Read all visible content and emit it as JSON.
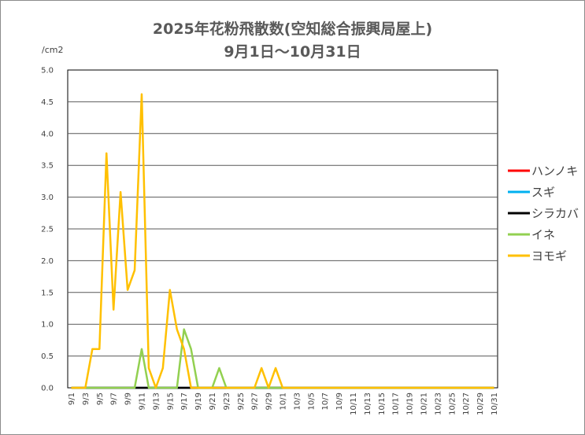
{
  "title_line1": "2025年花粉飛散数(空知総合振興局屋上)",
  "title_line2": "9月1日～10月31日",
  "chart_data": {
    "type": "line",
    "title": "2025年花粉飛散数(空知総合振興局屋上) 9月1日～10月31日",
    "ylabel": "/cm2",
    "xlabel": "",
    "ylim": [
      0,
      5.0
    ],
    "yticks": [
      "0.0",
      "0.5",
      "1.0",
      "1.5",
      "2.0",
      "2.5",
      "3.0",
      "3.5",
      "4.0",
      "4.5",
      "5.0"
    ],
    "categories": [
      "9/1",
      "9/2",
      "9/3",
      "9/4",
      "9/5",
      "9/6",
      "9/7",
      "9/8",
      "9/9",
      "9/10",
      "9/11",
      "9/12",
      "9/13",
      "9/14",
      "9/15",
      "9/16",
      "9/17",
      "9/18",
      "9/19",
      "9/20",
      "9/21",
      "9/22",
      "9/23",
      "9/24",
      "9/25",
      "9/26",
      "9/27",
      "9/28",
      "9/29",
      "9/30",
      "10/1",
      "10/2",
      "10/3",
      "10/4",
      "10/5",
      "10/6",
      "10/7",
      "10/8",
      "10/9",
      "10/10",
      "10/11",
      "10/12",
      "10/13",
      "10/14",
      "10/15",
      "10/16",
      "10/17",
      "10/18",
      "10/19",
      "10/20",
      "10/21",
      "10/22",
      "10/23",
      "10/24",
      "10/25",
      "10/26",
      "10/27",
      "10/28",
      "10/29",
      "10/30",
      "10/31"
    ],
    "tick_labels": [
      "9/1",
      "9/3",
      "9/5",
      "9/7",
      "9/9",
      "9/11",
      "9/13",
      "9/15",
      "9/17",
      "9/19",
      "9/21",
      "9/23",
      "9/25",
      "9/27",
      "9/29",
      "10/1",
      "10/3",
      "10/5",
      "10/7",
      "10/9",
      "10/11",
      "10/13",
      "10/15",
      "10/17",
      "10/19",
      "10/21",
      "10/23",
      "10/25",
      "10/27",
      "10/29",
      "10/31"
    ],
    "grid": true,
    "legend_position": "right",
    "series": [
      {
        "name": "ハンノキ",
        "color": "#ff0000",
        "values": [
          0,
          0,
          0,
          0,
          0,
          0,
          0,
          0,
          0,
          0,
          0,
          0,
          0,
          0,
          0,
          0,
          0,
          0,
          0,
          0,
          0,
          0,
          0,
          0,
          0,
          0,
          0,
          0,
          0,
          0,
          0,
          0,
          0,
          0,
          0,
          0,
          0,
          0,
          0,
          0,
          0,
          0,
          0,
          0,
          0,
          0,
          0,
          0,
          0,
          0,
          0,
          0,
          0,
          0,
          0,
          0,
          0,
          0,
          0,
          0,
          0
        ]
      },
      {
        "name": "スギ",
        "color": "#00b0f0",
        "values": [
          0,
          0,
          0,
          0,
          0,
          0,
          0,
          0,
          0,
          0,
          0,
          0,
          0,
          0,
          0,
          0,
          0,
          0,
          0,
          0,
          0,
          0,
          0,
          0,
          0,
          0,
          0,
          0,
          0,
          0,
          0,
          0,
          0,
          0,
          0,
          0,
          0,
          0,
          0,
          0,
          0,
          0,
          0,
          0,
          0,
          0,
          0,
          0,
          0,
          0,
          0,
          0,
          0,
          0,
          0,
          0,
          0,
          0,
          0,
          0,
          0
        ]
      },
      {
        "name": "シラカバ",
        "color": "#000000",
        "values": [
          0,
          0,
          0,
          0,
          0,
          0,
          0,
          0,
          0,
          0,
          0,
          0,
          0,
          0,
          0,
          0,
          0,
          0,
          0,
          0,
          0,
          0,
          0,
          0,
          0,
          0,
          0,
          0,
          0,
          0,
          0,
          0,
          0,
          0,
          0,
          0,
          0,
          0,
          0,
          0,
          0,
          0,
          0,
          0,
          0,
          0,
          0,
          0,
          0,
          0,
          0,
          0,
          0,
          0,
          0,
          0,
          0,
          0,
          0,
          0,
          0
        ]
      },
      {
        "name": "イネ",
        "color": "#92d050",
        "values": [
          0,
          0,
          0,
          0,
          0,
          0,
          0,
          0,
          0,
          0,
          0.61,
          0,
          0,
          0,
          0,
          0,
          0.92,
          0.61,
          0,
          0,
          0,
          0.31,
          0,
          0,
          0,
          0,
          0,
          0,
          0,
          0,
          0,
          0,
          0,
          0,
          0,
          0,
          0,
          0,
          0,
          0,
          0,
          0,
          0,
          0,
          0,
          0,
          0,
          0,
          0,
          0,
          0,
          0,
          0,
          0,
          0,
          0,
          0,
          0,
          0,
          0,
          0
        ]
      },
      {
        "name": "ヨモギ",
        "color": "#ffc000",
        "values": [
          0,
          0,
          0,
          0.61,
          0.61,
          3.69,
          1.23,
          3.08,
          1.54,
          1.85,
          4.62,
          0.31,
          0,
          0.31,
          1.54,
          0.92,
          0.61,
          0,
          0,
          0,
          0,
          0,
          0,
          0,
          0,
          0,
          0,
          0.31,
          0,
          0.31,
          0,
          0,
          0,
          0,
          0,
          0,
          0,
          0,
          0,
          0,
          0,
          0,
          0,
          0,
          0,
          0,
          0,
          0,
          0,
          0,
          0,
          0,
          0,
          0,
          0,
          0,
          0,
          0,
          0,
          0,
          0
        ]
      }
    ]
  }
}
